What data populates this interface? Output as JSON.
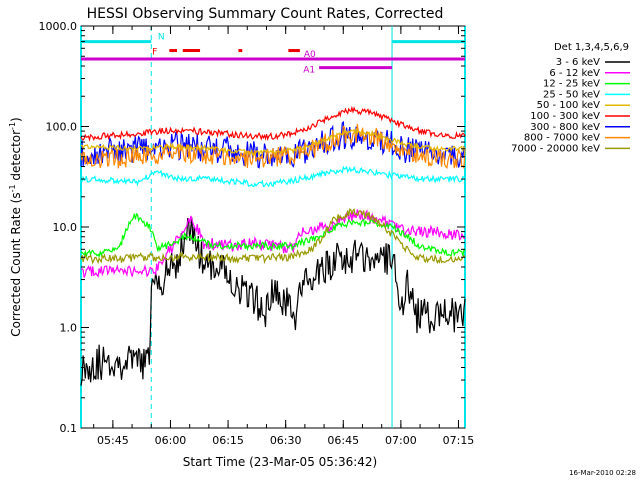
{
  "chart_data": {
    "type": "line",
    "title": "HESSI Observing Summary Count Rates, Corrected",
    "xlabel": "Start Time (23-Mar-05 05:36:42)",
    "ylabel": "Corrected Count Rate (s",
    "ylabel_sup": "-1",
    "ylabel_mid": " detector",
    "ylabel_end": ")",
    "footer": "16-Mar-2010 02:28",
    "x_units": "minutes since 05:36:42",
    "xlim": [
      0,
      100
    ],
    "ylim": [
      0.1,
      1000
    ],
    "y_scale": "log",
    "x_ticks": [
      {
        "v": 8.3,
        "label": "05:45"
      },
      {
        "v": 23.3,
        "label": "06:00"
      },
      {
        "v": 38.3,
        "label": "06:15"
      },
      {
        "v": 53.3,
        "label": "06:30"
      },
      {
        "v": 68.3,
        "label": "06:45"
      },
      {
        "v": 83.3,
        "label": "07:00"
      },
      {
        "v": 98.3,
        "label": "07:15"
      }
    ],
    "y_ticks": [
      {
        "v": 0.1,
        "label": "0.1"
      },
      {
        "v": 1,
        "label": "1.0"
      },
      {
        "v": 10,
        "label": "10.0"
      },
      {
        "v": 100,
        "label": "100.0"
      },
      {
        "v": 1000,
        "label": "1000.0"
      }
    ],
    "legend_title": "Det 1,3,4,5,6,9",
    "legend_position": "right",
    "series": [
      {
        "name": "3 - 6 keV",
        "color": "#000000",
        "x": [
          0,
          5,
          10,
          18,
          18.3,
          22,
          25,
          27,
          29,
          31,
          33,
          35,
          37,
          40,
          43,
          45,
          47,
          48.5,
          50,
          52,
          56,
          56.3,
          58,
          61,
          64,
          67,
          70,
          73,
          76,
          81,
          83,
          85,
          87,
          90,
          95,
          100
        ],
        "y": [
          0.4,
          0.45,
          0.45,
          0.45,
          2.6,
          3.2,
          4.5,
          8,
          10,
          5,
          3.8,
          4.5,
          4.0,
          2.6,
          2.2,
          1.8,
          1.7,
          1.4,
          2.2,
          1.9,
          1.3,
          2.5,
          2.5,
          3.0,
          4.0,
          4.8,
          5.0,
          5.0,
          5.0,
          5.0,
          1.4,
          2.6,
          1.3,
          1.3,
          1.3,
          1.3
        ]
      },
      {
        "name": "6 - 12 keV",
        "color": "#ff00ff",
        "x": [
          0,
          5,
          10,
          18,
          20,
          24,
          27,
          28.5,
          30,
          32,
          34,
          36,
          40,
          45,
          50,
          55,
          57,
          60,
          65,
          68,
          70,
          73,
          77,
          81,
          85,
          90,
          95,
          100
        ],
        "y": [
          3.5,
          3.6,
          3.8,
          3.5,
          4.0,
          6.5,
          9,
          12,
          10,
          6.5,
          6.8,
          6.5,
          6.5,
          6.8,
          6.5,
          6.0,
          9.0,
          9.5,
          10,
          12,
          13,
          13,
          12,
          10,
          9.0,
          9.0,
          8.5,
          8.5
        ]
      },
      {
        "name": "12 - 25 keV",
        "color": "#00ff00",
        "x": [
          0,
          5,
          8,
          10,
          12,
          14,
          16,
          18,
          20,
          22,
          24,
          27,
          30,
          35,
          40,
          45,
          50,
          55,
          60,
          63,
          65,
          68,
          70,
          72,
          75,
          78,
          81,
          84,
          88,
          92,
          96,
          100
        ],
        "y": [
          5.5,
          5.5,
          5.8,
          6.0,
          10,
          13,
          11,
          10,
          6.2,
          6.5,
          7.0,
          8.0,
          7.5,
          6.5,
          6.5,
          6.5,
          6.5,
          6.5,
          7.5,
          8.5,
          9.5,
          10.5,
          11,
          11,
          11,
          10.5,
          10,
          8.5,
          6.5,
          6.0,
          5.5,
          5.5
        ]
      },
      {
        "name": "25 - 50 keV",
        "color": "#00ffff",
        "x": [
          0,
          5,
          10,
          15,
          17,
          19,
          22,
          26,
          30,
          35,
          40,
          45,
          50,
          55,
          60,
          65,
          70,
          75,
          80,
          85,
          90,
          95,
          100
        ],
        "y": [
          30,
          30,
          28,
          28,
          31,
          36,
          33,
          30,
          30,
          30,
          28,
          27,
          27,
          29,
          32,
          35,
          38,
          36,
          33,
          31,
          30,
          30,
          30
        ]
      },
      {
        "name": "50 - 100 keV",
        "color": "#e5b800",
        "x": [
          0,
          5,
          10,
          15,
          20,
          25,
          30,
          35,
          40,
          45,
          50,
          55,
          60,
          65,
          70,
          75,
          80,
          85,
          90,
          95,
          100
        ],
        "y": [
          62,
          62,
          61,
          60,
          62,
          63,
          62,
          60,
          57,
          55,
          55,
          58,
          65,
          78,
          90,
          86,
          75,
          66,
          62,
          60,
          60
        ]
      },
      {
        "name": "100 - 300 keV",
        "color": "#ff0000",
        "x": [
          0,
          5,
          10,
          15,
          20,
          25,
          30,
          35,
          40,
          45,
          50,
          55,
          60,
          65,
          70,
          75,
          80,
          85,
          90,
          95,
          100
        ],
        "y": [
          77,
          80,
          82,
          85,
          90,
          92,
          90,
          87,
          83,
          80,
          80,
          85,
          100,
          125,
          145,
          138,
          118,
          98,
          87,
          82,
          80
        ]
      },
      {
        "name": "300 - 800 keV",
        "color": "#0000ff",
        "x": [
          0,
          5,
          10,
          15,
          20,
          25,
          30,
          35,
          40,
          45,
          50,
          55,
          60,
          65,
          70,
          75,
          80,
          85,
          90,
          95,
          100
        ],
        "y": [
          55,
          55,
          56,
          58,
          62,
          64,
          62,
          60,
          56,
          52,
          52,
          54,
          60,
          75,
          84,
          80,
          68,
          57,
          52,
          50,
          50
        ]
      },
      {
        "name": "800 - 7000 keV",
        "color": "#ff8800",
        "x": [
          0,
          5,
          10,
          15,
          20,
          25,
          30,
          35,
          40,
          45,
          50,
          55,
          60,
          65,
          70,
          75,
          80,
          85,
          90,
          95,
          100
        ],
        "y": [
          48,
          47,
          48,
          50,
          52,
          54,
          53,
          51,
          49,
          48,
          49,
          52,
          58,
          72,
          86,
          82,
          68,
          56,
          50,
          48,
          48
        ]
      },
      {
        "name": "7000 - 20000 keV",
        "color": "#999900",
        "x": [
          0,
          5,
          10,
          15,
          20,
          25,
          30,
          35,
          40,
          45,
          50,
          55,
          60,
          63,
          65,
          68,
          70,
          72,
          75,
          78,
          80,
          83,
          85,
          88,
          90,
          95,
          100
        ],
        "y": [
          4.8,
          4.8,
          4.8,
          5.0,
          5.0,
          5.0,
          5.0,
          5.0,
          4.8,
          4.8,
          5.0,
          5.0,
          6.0,
          8.0,
          11,
          13,
          14,
          14,
          13,
          11,
          9.0,
          7.0,
          6.0,
          5.0,
          4.8,
          4.8,
          4.8
        ]
      }
    ],
    "spacecraft_night": [
      [
        0,
        18.3
      ],
      [
        81,
        100
      ]
    ],
    "flags": [
      {
        "name": "N",
        "label": "N",
        "color": "#00e5e5",
        "level": 700,
        "intervals": [
          [
            0,
            18.3
          ],
          [
            81,
            100
          ]
        ]
      },
      {
        "name": "F",
        "label": "F",
        "color": "#ee0000",
        "level": 570,
        "intervals": [
          [
            23,
            25
          ],
          [
            26.5,
            31
          ],
          [
            41,
            42
          ],
          [
            54,
            57
          ]
        ]
      },
      {
        "name": "A0",
        "label": "A0",
        "color": "#cc00cc",
        "level": 470,
        "intervals": [
          [
            0,
            100
          ]
        ]
      },
      {
        "name": "A1",
        "label": "A1",
        "color": "#cc00cc",
        "level": 385,
        "intervals": [
          [
            62,
            81
          ]
        ]
      }
    ]
  }
}
